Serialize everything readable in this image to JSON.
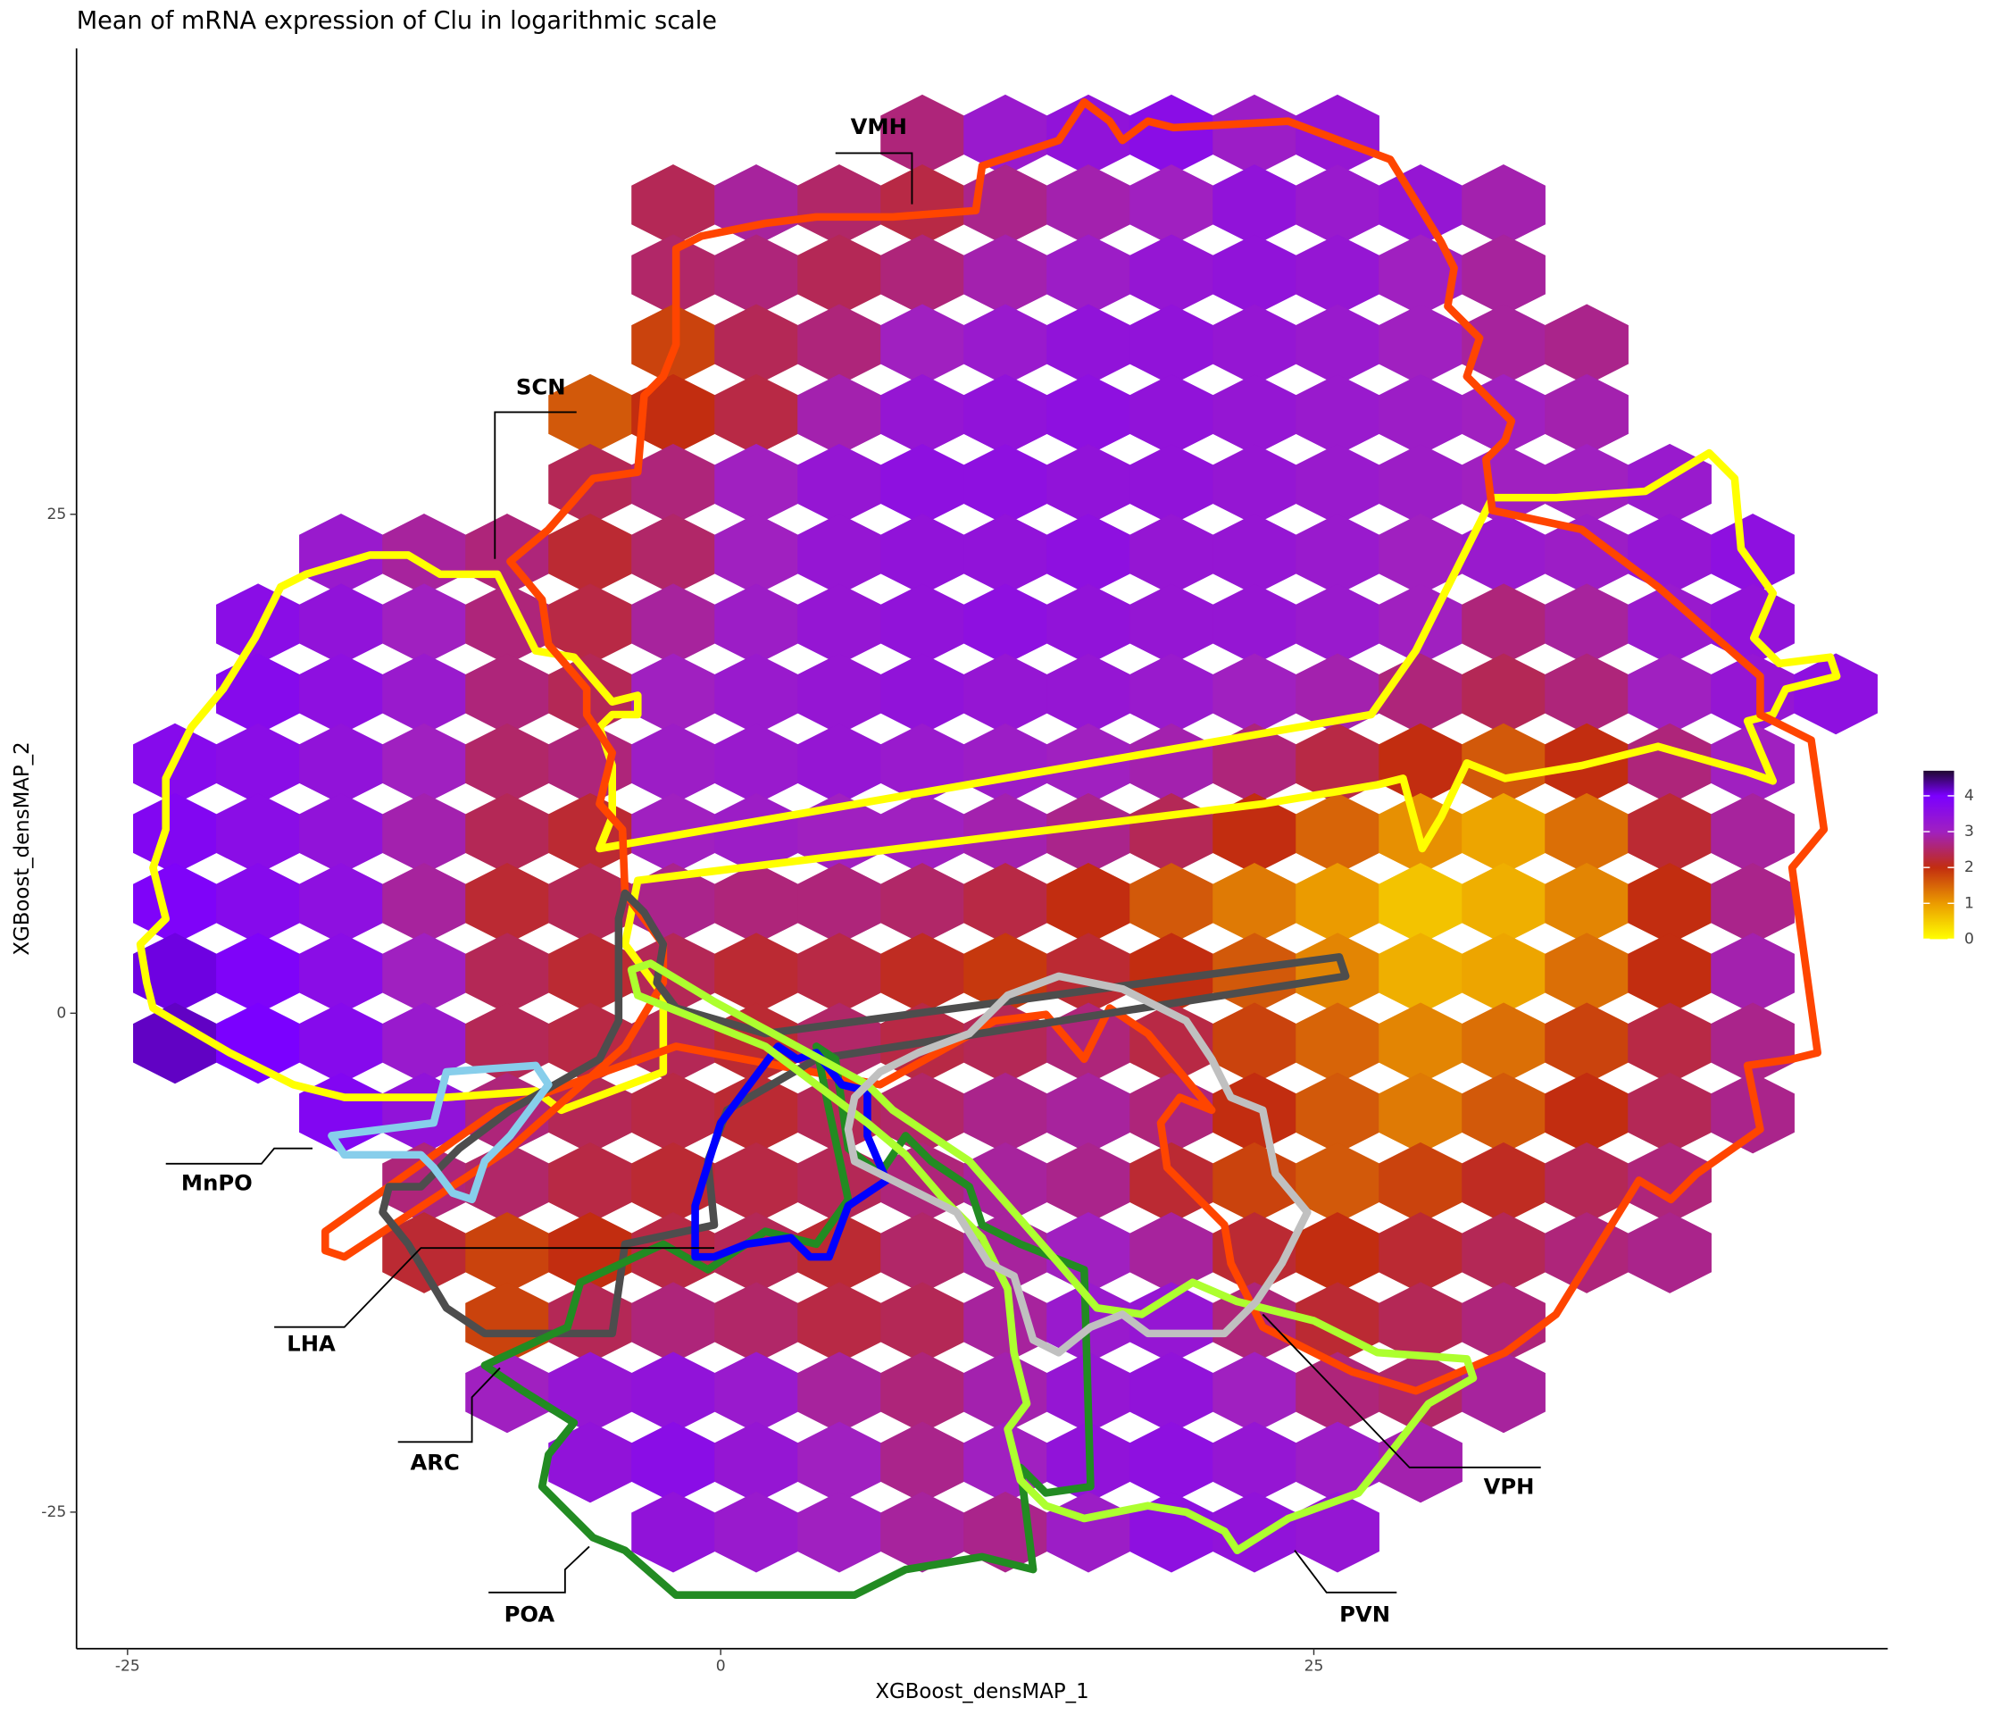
{
  "chart_data": {
    "type": "hexbin",
    "title": "Mean of mRNA expression of Clu in logarithmic scale",
    "x_label": "XGBoost_densMAP_1",
    "y_label": "XGBoost_densMAP_2",
    "xlim": [
      -27.15,
      49.19
    ],
    "ylim": [
      -31.84,
      48.34
    ],
    "xticks": [
      -25,
      0,
      25
    ],
    "yticks": [
      -25,
      0,
      25
    ],
    "x": [
      -23,
      -19.5,
      -16,
      -12.5,
      -9,
      -5.5,
      -2,
      1.5,
      5,
      8.5,
      12,
      15.5,
      19,
      22.5,
      26,
      29.5,
      33,
      36.5,
      40,
      43.5,
      47
    ],
    "y": [
      44,
      40.5,
      37,
      33.5,
      30,
      26.5,
      23,
      19.5,
      16,
      12.5,
      9,
      5.5,
      2,
      -1.5,
      -5,
      -8.5,
      -12,
      -15.5,
      -19,
      -22.5,
      -26
    ],
    "values": [
      [
        null,
        null,
        null,
        null,
        null,
        null,
        null,
        null,
        null,
        2.6,
        3.2,
        3.4,
        3.6,
        3.1,
        3.3,
        null,
        null,
        null,
        null,
        null,
        null
      ],
      [
        null,
        null,
        null,
        null,
        null,
        null,
        2.4,
        2.8,
        2.5,
        2.3,
        2.7,
        2.9,
        3.0,
        3.4,
        3.2,
        3.3,
        2.9,
        null,
        null,
        null,
        null
      ],
      [
        null,
        null,
        null,
        null,
        null,
        null,
        2.5,
        2.6,
        2.4,
        2.6,
        2.9,
        3.1,
        3.3,
        3.4,
        3.3,
        3.0,
        2.8,
        null,
        null,
        null,
        null
      ],
      [
        null,
        null,
        null,
        null,
        null,
        null,
        1.8,
        2.4,
        2.6,
        3.0,
        3.2,
        3.4,
        3.4,
        3.3,
        3.2,
        3.0,
        2.8,
        2.7,
        null,
        null,
        null
      ],
      [
        null,
        null,
        null,
        null,
        null,
        1.6,
        2.0,
        2.3,
        2.9,
        3.3,
        3.4,
        3.5,
        3.4,
        3.3,
        3.2,
        3.1,
        3.0,
        2.9,
        null,
        null,
        null
      ],
      [
        null,
        null,
        null,
        null,
        null,
        2.4,
        2.6,
        3.0,
        3.3,
        3.5,
        3.5,
        3.4,
        3.4,
        3.3,
        3.2,
        3.1,
        3.0,
        3.0,
        3.2,
        null,
        null
      ],
      [
        null,
        null,
        3.2,
        2.8,
        2.6,
        2.2,
        2.5,
        3.0,
        3.3,
        3.4,
        3.4,
        3.5,
        3.3,
        3.3,
        3.2,
        3.0,
        3.2,
        3.1,
        3.3,
        3.5,
        null
      ],
      [
        null,
        3.6,
        3.4,
        3.0,
        2.6,
        2.3,
        2.8,
        3.1,
        3.3,
        3.4,
        3.5,
        3.4,
        3.3,
        3.3,
        3.2,
        3.0,
        2.6,
        2.8,
        3.2,
        3.4,
        null
      ],
      [
        null,
        3.7,
        3.5,
        3.2,
        2.6,
        2.4,
        3.0,
        3.2,
        3.3,
        3.4,
        3.3,
        3.3,
        3.2,
        3.0,
        2.9,
        2.6,
        2.4,
        2.6,
        3.0,
        3.3,
        3.5
      ],
      [
        3.7,
        3.6,
        3.4,
        3.0,
        2.5,
        2.6,
        3.1,
        3.2,
        3.3,
        3.2,
        3.1,
        3.0,
        2.9,
        2.6,
        2.3,
        2.0,
        1.6,
        2.0,
        2.6,
        3.0,
        null
      ],
      [
        3.8,
        3.6,
        3.4,
        2.9,
        2.4,
        2.2,
        3.0,
        3.1,
        3.0,
        3.0,
        2.9,
        2.7,
        2.4,
        2.0,
        1.5,
        1.1,
        0.9,
        1.4,
        2.2,
        2.8,
        null
      ],
      [
        3.9,
        3.7,
        3.5,
        2.8,
        2.2,
        2.4,
        2.7,
        2.6,
        2.6,
        2.5,
        2.3,
        2.0,
        1.6,
        1.3,
        1.0,
        0.6,
        0.8,
        1.2,
        2.0,
        2.7,
        null
      ],
      [
        4.1,
        3.9,
        3.6,
        3.0,
        2.4,
        2.2,
        2.4,
        2.2,
        2.3,
        2.1,
        1.9,
        2.2,
        2.0,
        1.6,
        1.2,
        0.8,
        0.9,
        1.4,
        2.0,
        2.9,
        null
      ],
      [
        4.2,
        4.0,
        3.7,
        3.2,
        2.4,
        2.3,
        2.4,
        2.2,
        2.5,
        2.3,
        2.4,
        2.6,
        2.3,
        1.8,
        1.5,
        1.2,
        1.4,
        1.8,
        2.3,
        2.7,
        null
      ],
      [
        null,
        null,
        3.8,
        3.4,
        2.6,
        2.4,
        2.3,
        2.2,
        2.4,
        2.5,
        2.7,
        2.8,
        2.6,
        2.0,
        1.6,
        1.3,
        1.6,
        2.0,
        2.4,
        2.7,
        null
      ],
      [
        null,
        null,
        null,
        2.6,
        2.5,
        2.3,
        2.2,
        2.3,
        2.4,
        2.6,
        2.8,
        2.7,
        2.2,
        1.8,
        1.6,
        1.8,
        2.1,
        2.4,
        2.6,
        null,
        null
      ],
      [
        null,
        null,
        null,
        2.2,
        1.8,
        2.0,
        2.3,
        2.4,
        2.2,
        2.5,
        2.8,
        3.0,
        2.8,
        2.2,
        2.0,
        2.2,
        2.4,
        2.6,
        2.7,
        null,
        null
      ],
      [
        null,
        null,
        null,
        null,
        1.8,
        2.4,
        2.6,
        2.5,
        2.3,
        2.4,
        2.8,
        3.2,
        3.3,
        2.6,
        2.2,
        2.4,
        2.6,
        null,
        null,
        null,
        null
      ],
      [
        null,
        null,
        null,
        null,
        3.0,
        3.3,
        3.4,
        3.2,
        2.8,
        2.6,
        2.9,
        3.3,
        3.4,
        3.0,
        2.6,
        2.5,
        2.8,
        null,
        null,
        null,
        null
      ],
      [
        null,
        null,
        null,
        null,
        null,
        3.4,
        3.6,
        3.3,
        3.0,
        2.7,
        3.0,
        3.4,
        3.5,
        3.3,
        3.1,
        2.9,
        null,
        null,
        null,
        null,
        null
      ],
      [
        null,
        null,
        null,
        null,
        null,
        null,
        3.4,
        3.2,
        3.0,
        2.8,
        2.7,
        3.1,
        3.5,
        3.4,
        3.3,
        null,
        null,
        null,
        null,
        null,
        null
      ]
    ],
    "colorbar": {
      "lim": [
        0,
        4.7
      ],
      "ticks": [
        0,
        1,
        2,
        3,
        4
      ],
      "stops": [
        {
          "value": 0,
          "color": "#ffff00"
        },
        {
          "value": 1,
          "color": "#eb9b00"
        },
        {
          "value": 2,
          "color": "#c22d10"
        },
        {
          "value": 3,
          "color": "#a020c0"
        },
        {
          "value": 4,
          "color": "#7b00ff"
        },
        {
          "value": 4.7,
          "color": "#200830"
        }
      ]
    },
    "regions": [
      {
        "label": "VMH",
        "color": "#ff4500"
      },
      {
        "label": "SCN",
        "color": "#ffff00"
      },
      {
        "label": "MnPO",
        "color": "#87ceeb"
      },
      {
        "label": "LHA",
        "color": "#4d4d4d"
      },
      {
        "label": "ARC",
        "color": "#0000ff"
      },
      {
        "label": "POA",
        "color": "#228b22"
      },
      {
        "label": "PVN",
        "color": "#adff2f"
      },
      {
        "label": "VPH",
        "color": "#c0c0c0"
      }
    ]
  }
}
